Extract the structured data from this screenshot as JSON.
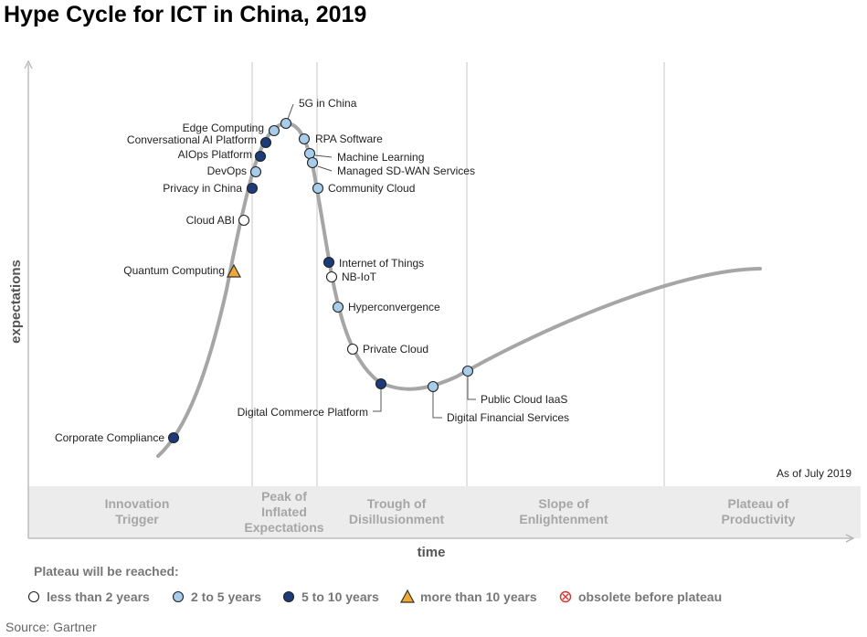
{
  "title": "Hype Cycle for ICT in China, 2019",
  "date_note": "As of July 2019",
  "y_axis_label": "expectations",
  "x_axis_label": "time",
  "phases": [
    {
      "lines": [
        "Innovation",
        "Trigger"
      ]
    },
    {
      "lines": [
        "Peak of",
        "Inflated",
        "Expectations"
      ]
    },
    {
      "lines": [
        "Trough of",
        "Disillusionment"
      ]
    },
    {
      "lines": [
        "Slope of",
        "Enlightenment"
      ]
    },
    {
      "lines": [
        "Plateau of",
        "Productivity"
      ]
    }
  ],
  "legend": {
    "title": "Plateau will be reached:",
    "items": [
      {
        "key": "lt2",
        "label": "less than 2 years"
      },
      {
        "key": "2to5",
        "label": "2 to 5 years"
      },
      {
        "key": "5to10",
        "label": "5 to 10 years"
      },
      {
        "key": "gt10",
        "label": "more than 10 years"
      },
      {
        "key": "obsolete",
        "label": "obsolete before plateau"
      }
    ]
  },
  "colors": {
    "lt2": "#ffffff",
    "2to5": "#a7cdec",
    "5to10": "#1b3b7a",
    "gt10": "#f0a830",
    "obsolete": "#d9302e",
    "curve": "#a6a6a6",
    "phase_band": "#ececec"
  },
  "technologies": [
    {
      "name": "5G in China",
      "category": "2to5"
    },
    {
      "name": "Edge Computing",
      "category": "2to5"
    },
    {
      "name": "RPA Software",
      "category": "2to5"
    },
    {
      "name": "Conversational AI Platform",
      "category": "5to10"
    },
    {
      "name": "Machine Learning",
      "category": "2to5"
    },
    {
      "name": "AIOps Platform",
      "category": "5to10"
    },
    {
      "name": "Managed SD-WAN Services",
      "category": "2to5"
    },
    {
      "name": "DevOps",
      "category": "2to5"
    },
    {
      "name": "Privacy in China",
      "category": "5to10"
    },
    {
      "name": "Community Cloud",
      "category": "2to5"
    },
    {
      "name": "Cloud ABI",
      "category": "lt2"
    },
    {
      "name": "Internet of Things",
      "category": "5to10"
    },
    {
      "name": "Quantum Computing",
      "category": "gt10"
    },
    {
      "name": "NB-IoT",
      "category": "lt2"
    },
    {
      "name": "Hyperconvergence",
      "category": "2to5"
    },
    {
      "name": "Private Cloud",
      "category": "lt2"
    },
    {
      "name": "Public Cloud IaaS",
      "category": "2to5"
    },
    {
      "name": "Digital Commerce Platform",
      "category": "5to10"
    },
    {
      "name": "Digital Financial Services",
      "category": "2to5"
    },
    {
      "name": "Corporate Compliance",
      "category": "5to10"
    }
  ],
  "source": "Source: Gartner"
}
